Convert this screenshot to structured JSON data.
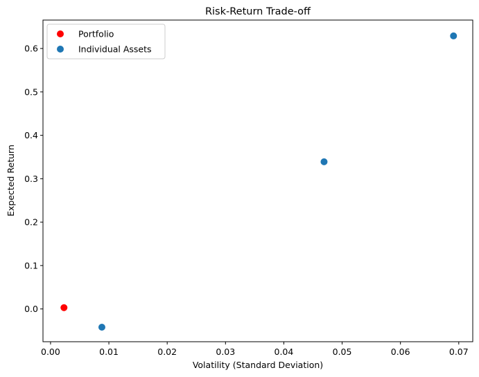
{
  "chart_data": {
    "type": "scatter",
    "title": "Risk-Return Trade-off",
    "xlabel": "Volatility (Standard Deviation)",
    "ylabel": "Expected Return",
    "xlim": [
      -0.0013,
      0.0724
    ],
    "ylim": [
      -0.0755,
      0.6655
    ],
    "xticks": [
      0.0,
      0.01,
      0.02,
      0.03,
      0.04,
      0.05,
      0.06,
      0.07
    ],
    "xtick_labels": [
      "0.00",
      "0.01",
      "0.02",
      "0.03",
      "0.04",
      "0.05",
      "0.06",
      "0.07"
    ],
    "yticks": [
      0.0,
      0.1,
      0.2,
      0.3,
      0.4,
      0.5,
      0.6
    ],
    "ytick_labels": [
      "0.0",
      "0.1",
      "0.2",
      "0.3",
      "0.4",
      "0.5",
      "0.6"
    ],
    "grid": false,
    "legend_position": "top-left",
    "series": [
      {
        "name": "Portfolio",
        "color": "#ff0000",
        "points": [
          {
            "x": 0.0023,
            "y": 0.003
          }
        ]
      },
      {
        "name": "Individual Assets",
        "color": "#1f77b4",
        "points": [
          {
            "x": 0.0088,
            "y": -0.042
          },
          {
            "x": 0.0469,
            "y": 0.339
          },
          {
            "x": 0.0691,
            "y": 0.629
          }
        ]
      }
    ]
  }
}
